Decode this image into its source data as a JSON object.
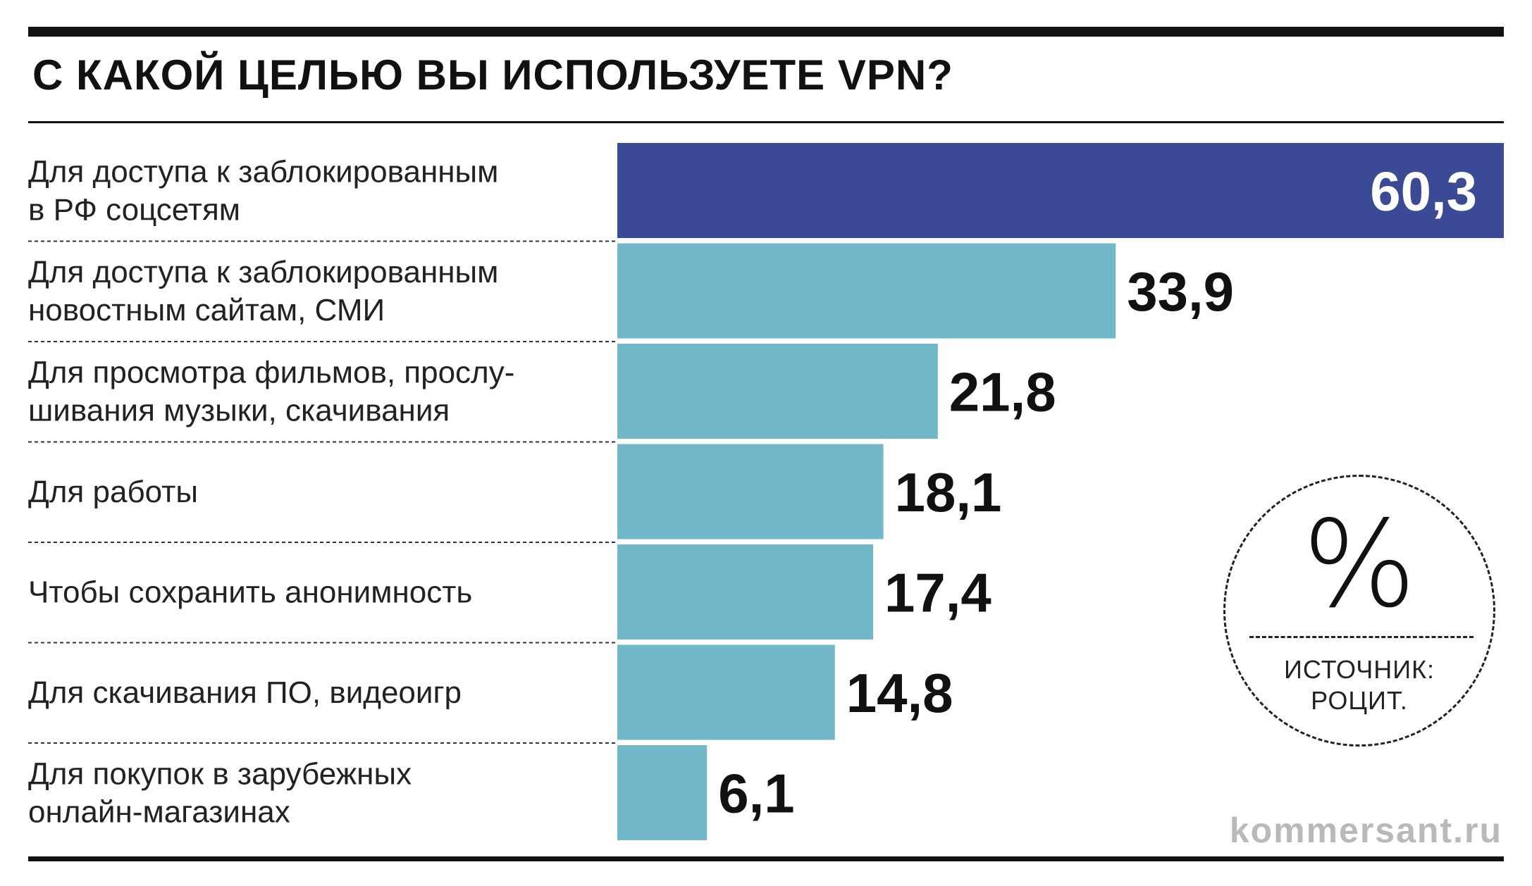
{
  "chart_data": {
    "type": "bar",
    "orientation": "horizontal",
    "title": "С КАКОЙ ЦЕЛЬЮ ВЫ ИСПОЛЬЗУЕТЕ VPN?",
    "categories": [
      [
        "Для доступа к заблокированным",
        "в РФ соцсетям"
      ],
      [
        "Для доступа к заблокированным",
        "новостным сайтам, СМИ"
      ],
      [
        "Для просмотра фильмов, прослу-",
        "шивания музыки, скачивания"
      ],
      [
        "Для работы"
      ],
      [
        "Чтобы сохранить анонимность"
      ],
      [
        "Для скачивания ПО, видеоигр"
      ],
      [
        "Для покупок в зарубежных",
        "онлайн-магазинах"
      ]
    ],
    "values": [
      60.3,
      33.9,
      21.8,
      18.1,
      17.4,
      14.8,
      6.1
    ],
    "value_labels": [
      "60,3",
      "33,9",
      "21,8",
      "18,1",
      "17,4",
      "14,8",
      "6,1"
    ],
    "xlim": [
      0,
      60.3
    ],
    "highlight_color": "#3a4a94",
    "bar_color": "#72b8c8",
    "grid": false
  },
  "unit": {
    "sign": "%",
    "source_lines": [
      "ИСТОЧНИК:",
      "РОЦИТ."
    ]
  },
  "credit": "kommersant.ru"
}
